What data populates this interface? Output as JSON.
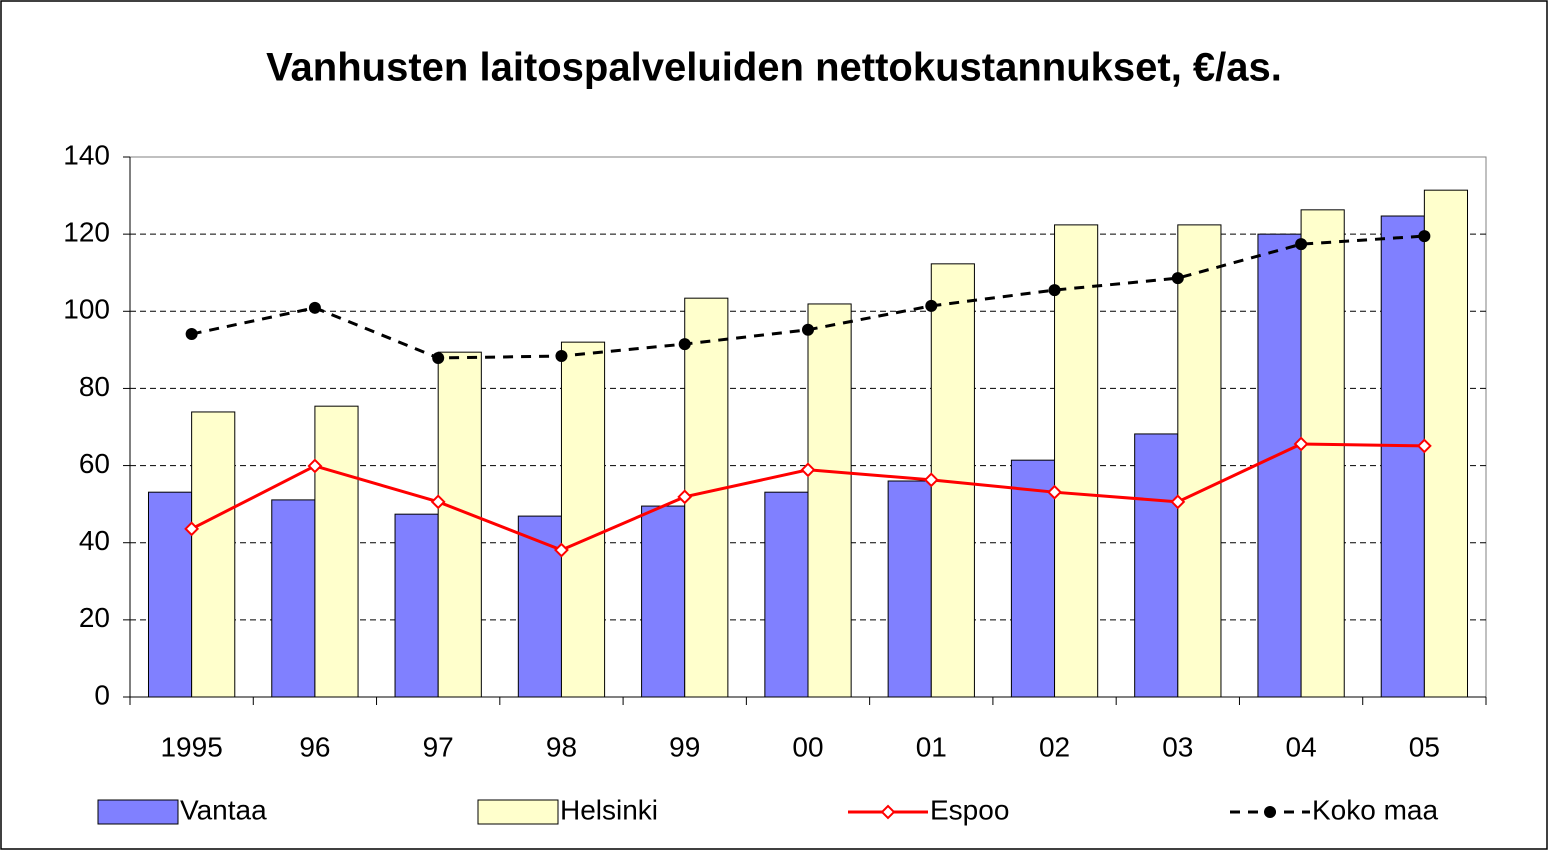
{
  "chart_data": {
    "type": "bar",
    "title": "Vanhusten laitospalveluiden nettokustannukset, €/as.",
    "categories": [
      "1995",
      "96",
      "97",
      "98",
      "99",
      "00",
      "01",
      "02",
      "03",
      "04",
      "05"
    ],
    "series": [
      {
        "name": "Vantaa",
        "type": "bar",
        "color": "#8080ff",
        "values": [
          53.1,
          51.1,
          47.4,
          46.9,
          49.5,
          53.1,
          56,
          61.4,
          68.2,
          120,
          124.7
        ]
      },
      {
        "name": "Helsinki",
        "type": "bar",
        "color": "#ffffcc",
        "values": [
          73.9,
          75.4,
          89.4,
          92,
          103.4,
          101.9,
          112.3,
          122.4,
          122.4,
          126.3,
          131.4
        ]
      },
      {
        "name": "Espoo",
        "type": "line",
        "color": "#ff0000",
        "marker": "diamond",
        "dashed": false,
        "values": [
          43.6,
          59.9,
          50.6,
          38.1,
          51.9,
          58.9,
          56.3,
          53.1,
          50.6,
          65.6,
          65.1
        ]
      },
      {
        "name": "Koko maa",
        "type": "line",
        "color": "#000000",
        "marker": "circle",
        "dashed": true,
        "values": [
          94.1,
          100.9,
          87.9,
          88.4,
          91.5,
          95.2,
          101.4,
          105.5,
          108.6,
          117.4,
          119.5
        ]
      }
    ],
    "ylim": [
      0,
      140
    ],
    "yticks": [
      0,
      20,
      40,
      60,
      80,
      100,
      120,
      140
    ],
    "grid": true,
    "legend": "bottom"
  }
}
